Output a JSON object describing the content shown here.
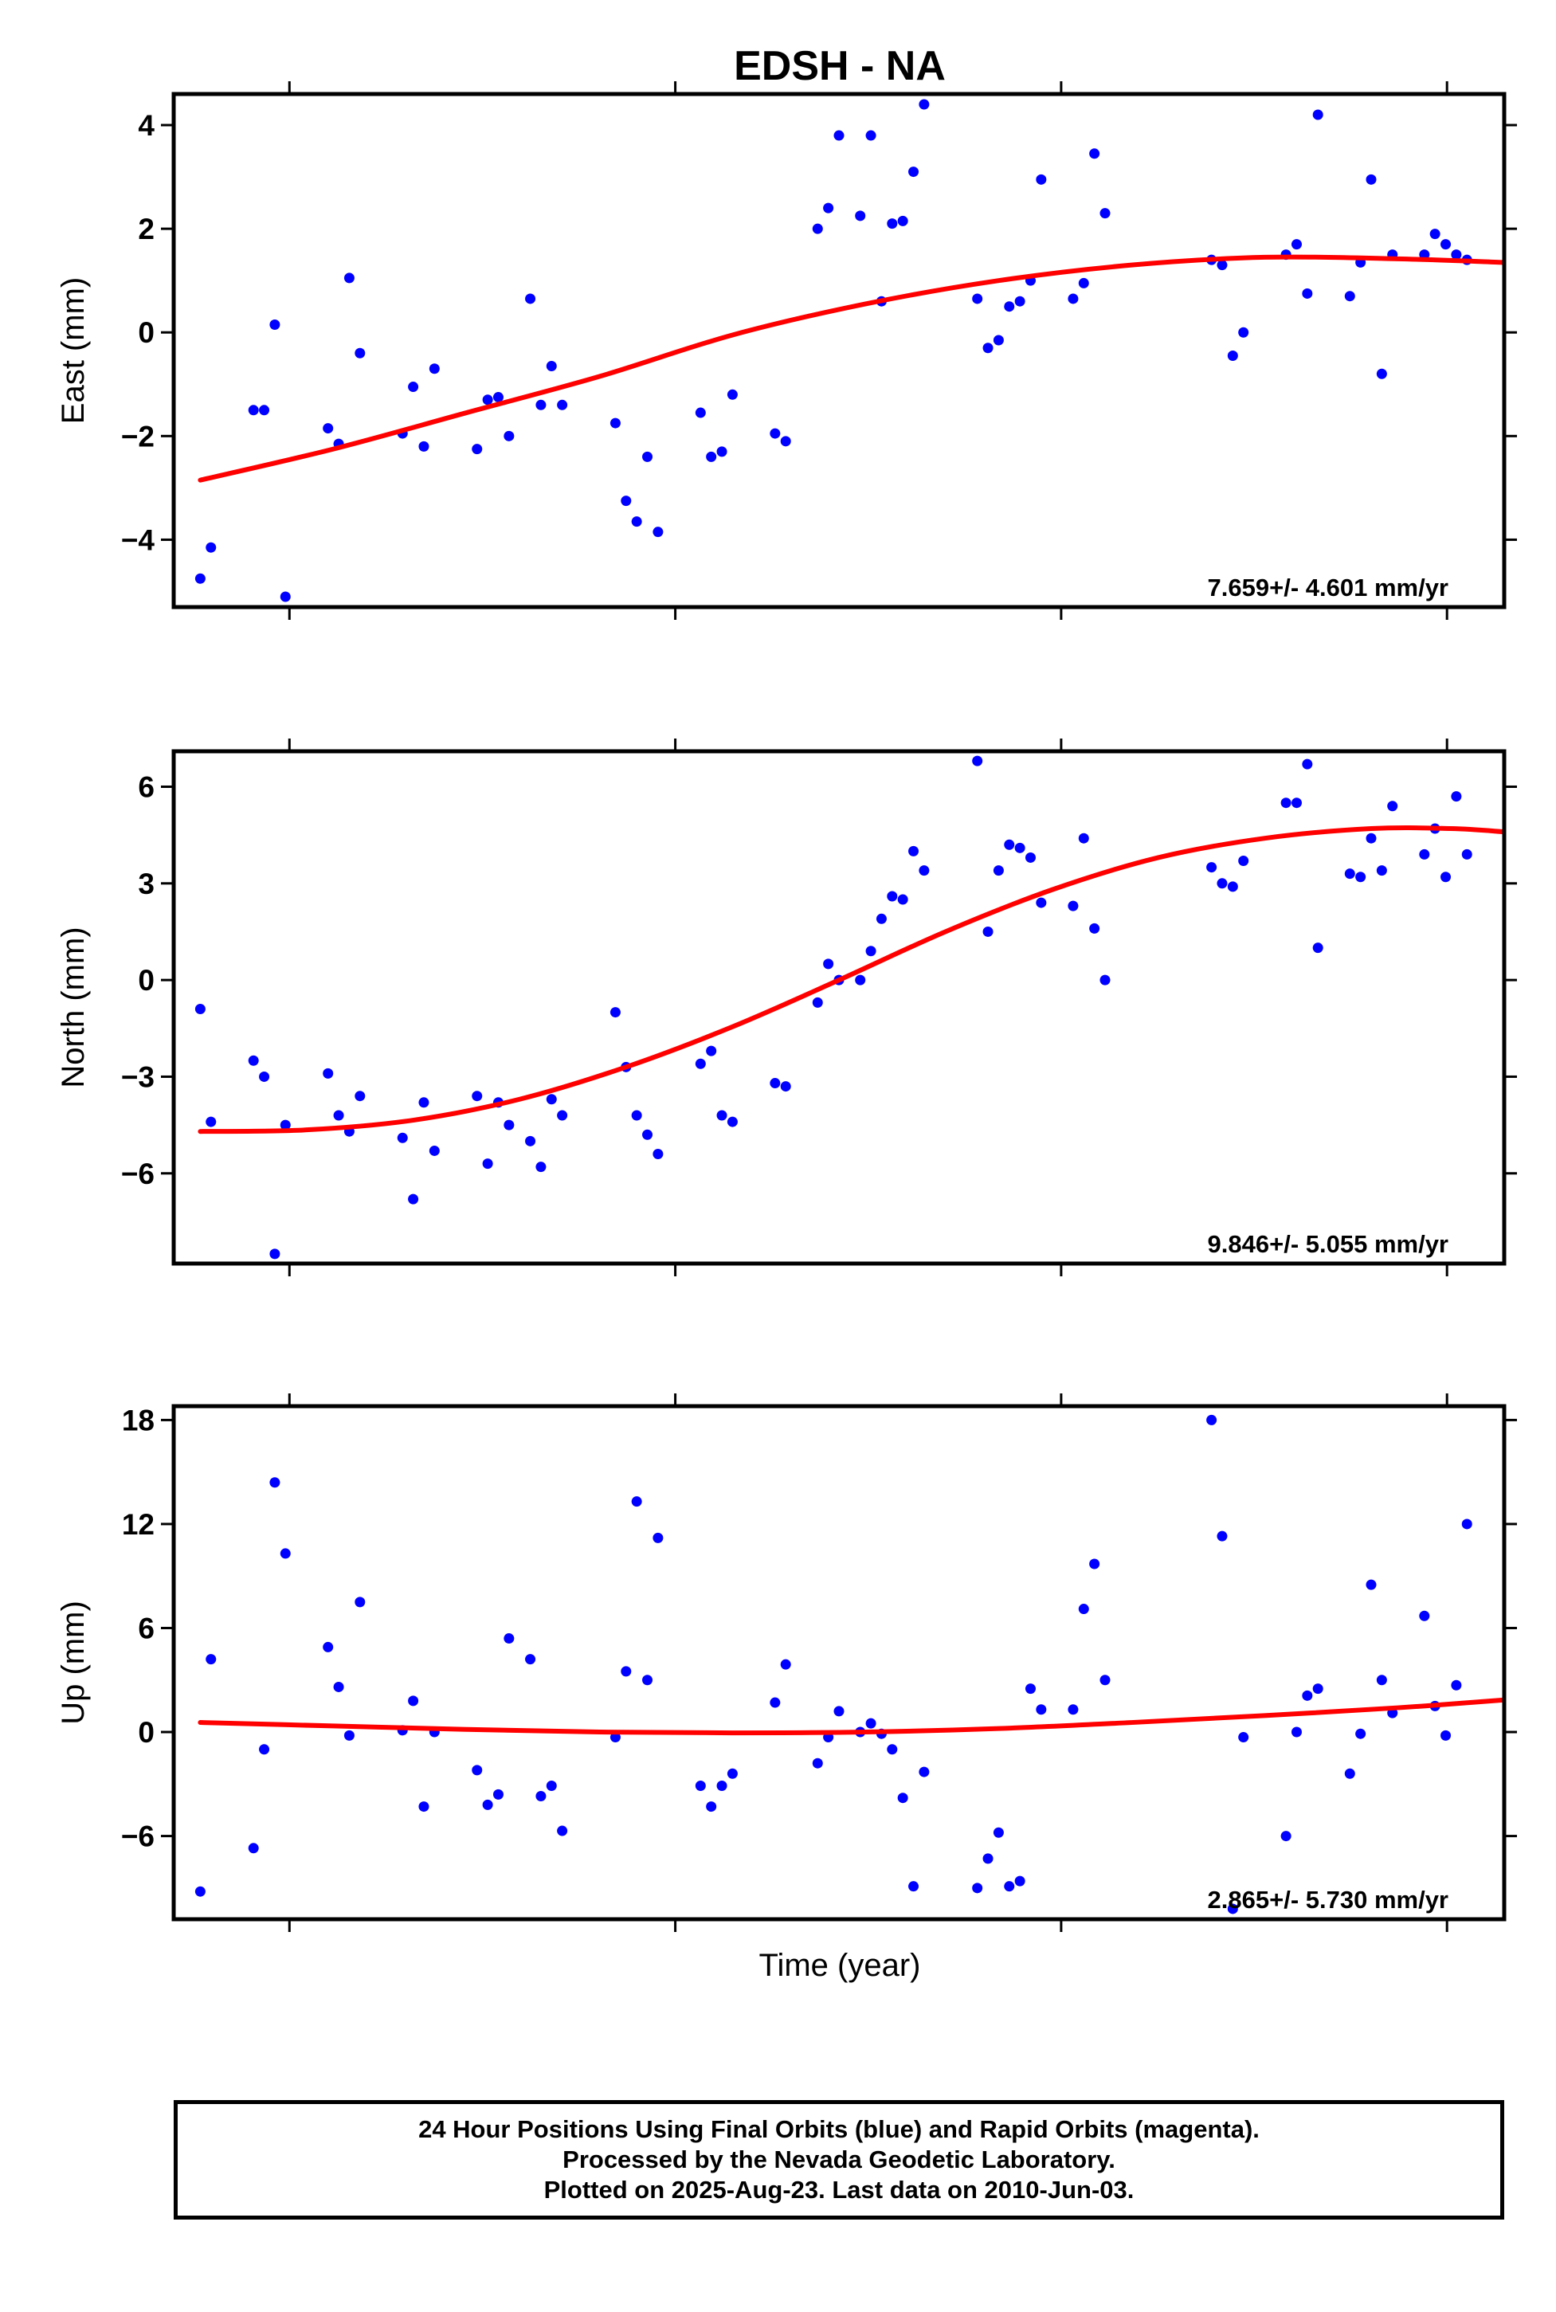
{
  "title": "EDSH - NA",
  "xlabel": "Time (year)",
  "colors": {
    "final_orbits": "#0000ff",
    "fit": "#ff0000",
    "frame": "#000000",
    "background": "#ffffff"
  },
  "notes": {
    "line1": "24 Hour Positions Using Final Orbits (blue) and Rapid Orbits (magenta).",
    "line2": "Processed by the Nevada Geodetic Laboratory.",
    "line3": "Plotted on 2025-Aug-23. Last data on 2010-Jun-03."
  },
  "chart_data": [
    {
      "type": "scatter",
      "component": "east",
      "ylabel": "East (mm)",
      "ylim": [
        -5.3,
        4.6
      ],
      "yticks": [
        4,
        2,
        0,
        -2,
        -4
      ],
      "ytick_labels": [
        "4",
        "2",
        "0",
        "−2",
        "−4"
      ],
      "xlim": [
        0,
        1000
      ],
      "xticks": [
        87,
        377,
        667,
        957
      ],
      "rate_label": "7.659+/- 4.601 mm/yr",
      "x": [
        20,
        28,
        60,
        68,
        76,
        84,
        116,
        124,
        132,
        140,
        172,
        180,
        188,
        196,
        228,
        236,
        244,
        252,
        268,
        276,
        284,
        292,
        332,
        340,
        348,
        356,
        364,
        396,
        404,
        412,
        420,
        452,
        460,
        484,
        492,
        500,
        516,
        524,
        532,
        540,
        548,
        556,
        564,
        604,
        612,
        620,
        628,
        636,
        644,
        652,
        676,
        684,
        692,
        700,
        780,
        788,
        796,
        804,
        836,
        844,
        852,
        860,
        884,
        892,
        900,
        908,
        916,
        940,
        948,
        956,
        964,
        972
      ],
      "y": [
        -4.75,
        -4.15,
        -1.5,
        -1.5,
        0.15,
        -5.1,
        -1.85,
        -2.15,
        1.05,
        -0.4,
        -1.95,
        -1.05,
        -2.2,
        -0.7,
        -2.25,
        -1.3,
        -1.25,
        -2.0,
        0.65,
        -1.4,
        -0.65,
        -1.4,
        -1.75,
        -3.25,
        -3.65,
        -2.4,
        -3.85,
        -1.55,
        -2.4,
        -2.3,
        -1.2,
        -1.95,
        -2.1,
        2.0,
        2.4,
        3.8,
        2.25,
        3.8,
        0.6,
        2.1,
        2.15,
        3.1,
        4.4,
        0.65,
        -0.3,
        -0.15,
        0.5,
        0.6,
        1.0,
        2.95,
        0.65,
        0.95,
        3.45,
        2.3,
        1.4,
        1.3,
        -0.45,
        0.0,
        1.5,
        1.7,
        0.75,
        4.2,
        0.7,
        1.35,
        2.95,
        -0.8,
        1.5,
        1.5,
        1.9,
        1.7,
        1.5,
        1.4
      ],
      "fit": {
        "x": [
          20,
          120,
          220,
          320,
          420,
          520,
          620,
          720,
          820,
          920,
          1000
        ],
        "y": [
          -2.85,
          -2.25,
          -1.55,
          -0.85,
          -0.05,
          0.55,
          1.0,
          1.3,
          1.45,
          1.42,
          1.35
        ]
      }
    },
    {
      "type": "scatter",
      "component": "north",
      "ylabel": "North (mm)",
      "ylim": [
        -8.8,
        7.1
      ],
      "yticks": [
        6,
        3,
        0,
        -3,
        -6
      ],
      "ytick_labels": [
        "6",
        "3",
        "0",
        "−3",
        "−6"
      ],
      "xlim": [
        0,
        1000
      ],
      "xticks": [
        87,
        377,
        667,
        957
      ],
      "rate_label": "9.846+/- 5.055 mm/yr",
      "x": [
        20,
        28,
        60,
        68,
        76,
        84,
        116,
        124,
        132,
        140,
        172,
        180,
        188,
        196,
        228,
        236,
        244,
        252,
        268,
        276,
        284,
        292,
        332,
        340,
        348,
        356,
        364,
        396,
        404,
        412,
        420,
        452,
        460,
        484,
        492,
        500,
        516,
        524,
        532,
        540,
        548,
        556,
        564,
        604,
        612,
        620,
        628,
        636,
        644,
        652,
        676,
        684,
        692,
        700,
        780,
        788,
        796,
        804,
        836,
        844,
        852,
        860,
        884,
        892,
        900,
        908,
        916,
        940,
        948,
        956,
        964,
        972
      ],
      "y": [
        -0.9,
        -4.4,
        -2.5,
        -3.0,
        -8.5,
        -4.5,
        -2.9,
        -4.2,
        -4.7,
        -3.6,
        -4.9,
        -6.8,
        -3.8,
        -5.3,
        -3.6,
        -5.7,
        -3.8,
        -4.5,
        -5.0,
        -5.8,
        -3.7,
        -4.2,
        -1.0,
        -2.7,
        -4.2,
        -4.8,
        -5.4,
        -2.6,
        -2.2,
        -4.2,
        -4.4,
        -3.2,
        -3.3,
        -0.7,
        0.5,
        0.0,
        0.0,
        0.9,
        1.9,
        2.6,
        2.5,
        4.0,
        3.4,
        6.8,
        1.5,
        3.4,
        4.2,
        4.1,
        3.8,
        2.4,
        2.3,
        4.4,
        1.6,
        0.0,
        3.5,
        3.0,
        2.9,
        3.7,
        5.5,
        5.5,
        6.7,
        1.0,
        3.3,
        3.2,
        4.4,
        3.4,
        5.4,
        3.9,
        4.7,
        3.2,
        5.7,
        3.9
      ],
      "fit": {
        "x": [
          20,
          100,
          180,
          260,
          340,
          420,
          500,
          580,
          660,
          740,
          820,
          900,
          960,
          1000
        ],
        "y": [
          -4.7,
          -4.65,
          -4.35,
          -3.7,
          -2.7,
          -1.45,
          0.0,
          1.5,
          2.8,
          3.8,
          4.4,
          4.7,
          4.7,
          4.6
        ]
      }
    },
    {
      "type": "scatter",
      "component": "up",
      "ylabel": "Up (mm)",
      "ylim": [
        -10.8,
        18.8
      ],
      "yticks": [
        18,
        12,
        6,
        0,
        -6
      ],
      "ytick_labels": [
        "18",
        "12",
        "6",
        "0",
        "−6"
      ],
      "xlim": [
        0,
        1000
      ],
      "xticks": [
        87,
        377,
        667,
        957
      ],
      "rate_label": "2.865+/- 5.730 mm/yr",
      "x": [
        20,
        28,
        60,
        68,
        76,
        84,
        116,
        124,
        132,
        140,
        172,
        180,
        188,
        196,
        228,
        236,
        244,
        252,
        268,
        276,
        284,
        292,
        332,
        340,
        348,
        356,
        364,
        396,
        404,
        412,
        420,
        452,
        460,
        484,
        492,
        500,
        516,
        524,
        532,
        540,
        548,
        556,
        564,
        604,
        612,
        620,
        628,
        636,
        644,
        652,
        676,
        684,
        692,
        700,
        780,
        788,
        796,
        804,
        836,
        844,
        852,
        860,
        884,
        892,
        900,
        908,
        916,
        940,
        948,
        956,
        964,
        972
      ],
      "y": [
        -9.2,
        4.2,
        -6.7,
        -1.0,
        14.4,
        10.3,
        4.9,
        2.6,
        -0.2,
        7.5,
        0.1,
        1.8,
        -4.3,
        0.0,
        -2.2,
        -4.2,
        -3.6,
        5.4,
        4.2,
        -3.7,
        -3.1,
        -5.7,
        -0.3,
        3.5,
        13.3,
        3.0,
        11.2,
        -3.1,
        -4.3,
        -3.1,
        -2.4,
        1.7,
        3.9,
        -1.8,
        -0.3,
        1.2,
        0.0,
        0.5,
        -0.1,
        -1.0,
        -3.8,
        -8.9,
        -2.3,
        -9.0,
        -7.3,
        -5.8,
        -8.9,
        -8.6,
        2.5,
        1.3,
        1.3,
        7.1,
        9.7,
        3.0,
        18.0,
        11.3,
        -10.2,
        -0.3,
        -6.0,
        0.0,
        2.1,
        2.5,
        -2.4,
        -0.1,
        8.5,
        3.0,
        1.1,
        6.7,
        1.5,
        -0.2,
        2.7,
        12.0
      ],
      "fit": {
        "x": [
          20,
          120,
          220,
          320,
          420,
          520,
          620,
          720,
          820,
          920,
          1000
        ],
        "y": [
          0.55,
          0.35,
          0.15,
          0.0,
          -0.05,
          0.0,
          0.2,
          0.55,
          0.95,
          1.4,
          1.85
        ]
      }
    }
  ]
}
